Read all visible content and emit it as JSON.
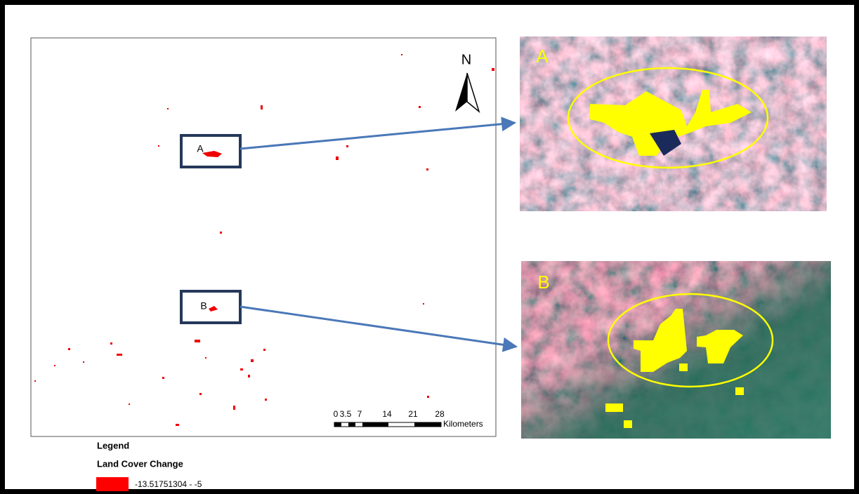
{
  "map": {
    "north_label": "N",
    "site_labels": [
      "A",
      "B"
    ],
    "scale_bar": {
      "labels": [
        "0",
        "3.5",
        "7",
        "14",
        "21",
        "28"
      ],
      "unit": "Kilometers"
    }
  },
  "insets": [
    {
      "label": "A"
    },
    {
      "label": "B"
    }
  ],
  "legend": {
    "title": "Legend",
    "subtitle": "Land Cover Change",
    "entries": [
      "-13.51751304 - -5"
    ]
  }
}
